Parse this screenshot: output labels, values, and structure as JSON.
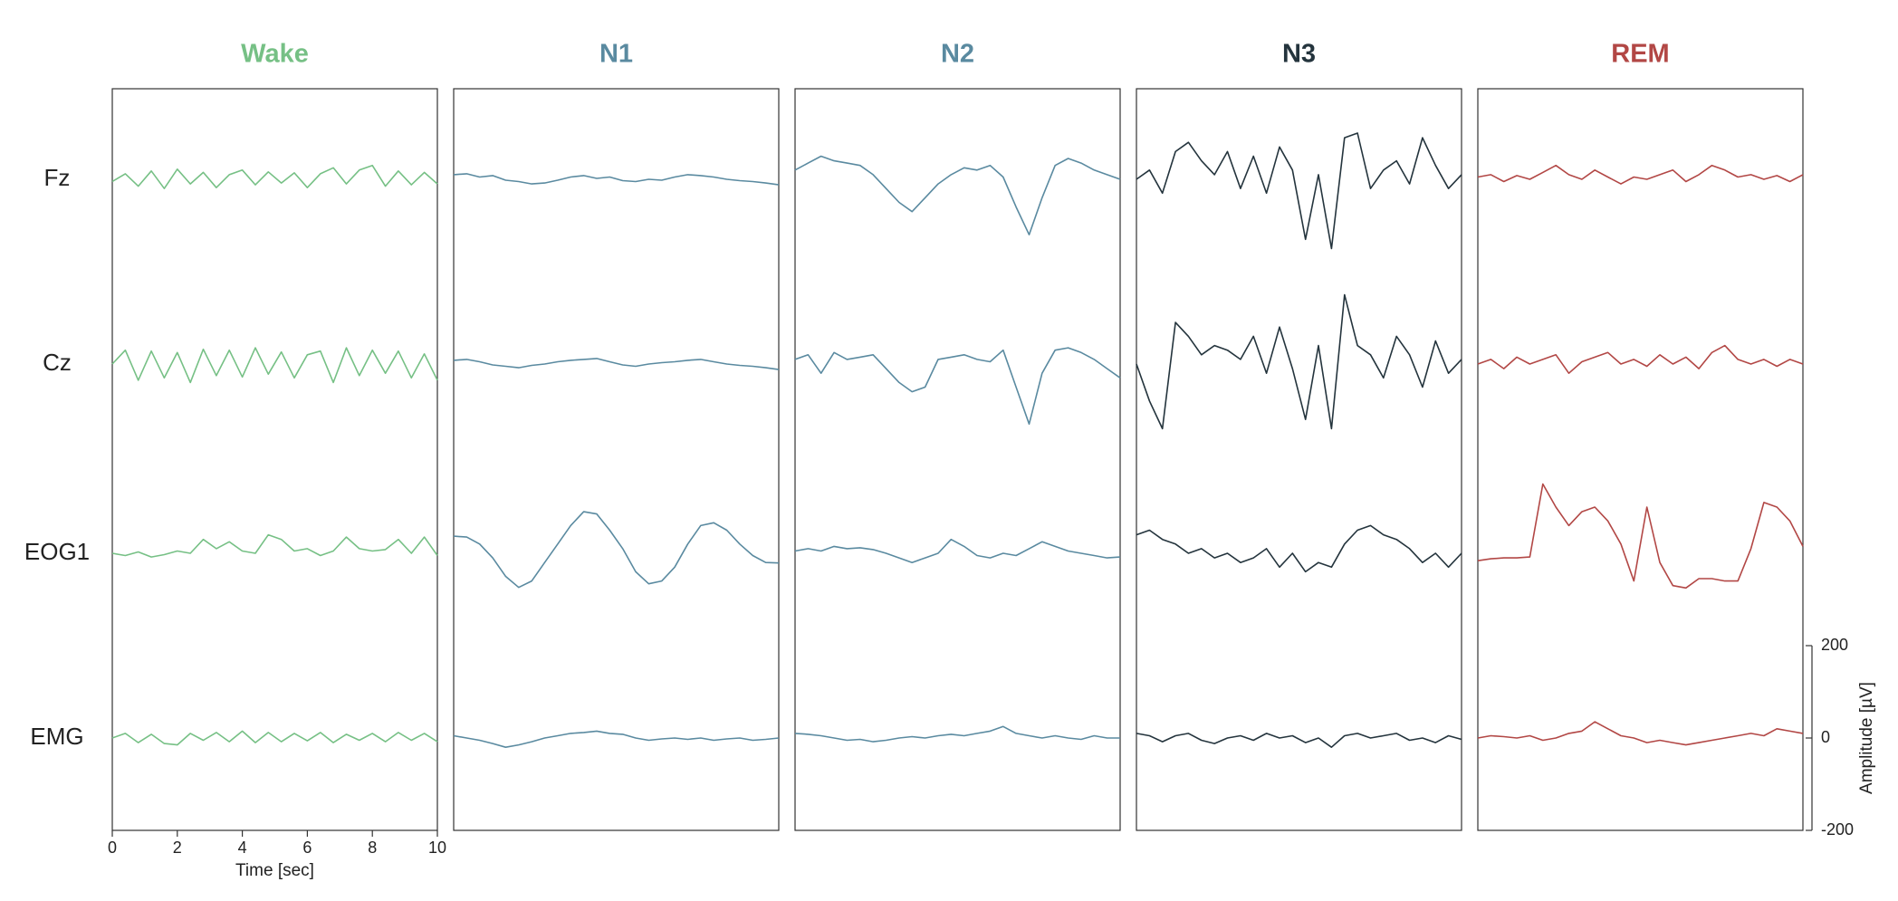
{
  "chart_data": {
    "type": "line",
    "channels": [
      "Fz",
      "Cz",
      "EOG1",
      "EMG"
    ],
    "x": [
      0,
      0.4,
      0.8,
      1.2,
      1.6,
      2.0,
      2.4,
      2.8,
      3.2,
      3.6,
      4.0,
      4.4,
      4.8,
      5.2,
      5.6,
      6.0,
      6.4,
      6.8,
      7.2,
      7.6,
      8.0,
      8.4,
      8.8,
      9.2,
      9.6,
      10
    ],
    "xlim": [
      0,
      10
    ],
    "xticks": [
      0,
      2,
      4,
      6,
      8,
      10
    ],
    "xlabel": "Time [sec]",
    "ylim": [
      -200,
      200
    ],
    "yticks": [
      -200,
      0,
      200
    ],
    "ylabel": "Amplitude [µV]",
    "panels": [
      {
        "title": "Wake",
        "color": "#76c085",
        "values": [
          [
            -5,
            12,
            -15,
            18,
            -20,
            22,
            -10,
            15,
            -18,
            10,
            20,
            -12,
            16,
            -8,
            14,
            -18,
            12,
            25,
            -10,
            20,
            30,
            -15,
            18,
            -12,
            15,
            -10
          ],
          [
            0,
            30,
            -35,
            28,
            -30,
            25,
            -40,
            32,
            -25,
            30,
            -28,
            35,
            -22,
            26,
            -30,
            20,
            28,
            -40,
            35,
            -25,
            30,
            -20,
            28,
            -30,
            22,
            -35
          ],
          [
            0,
            -5,
            3,
            -8,
            -3,
            5,
            0,
            30,
            10,
            25,
            5,
            0,
            40,
            30,
            5,
            10,
            -5,
            5,
            35,
            10,
            5,
            8,
            30,
            0,
            35,
            -5
          ],
          [
            0,
            10,
            -10,
            8,
            -12,
            -15,
            10,
            -5,
            12,
            -8,
            15,
            -10,
            12,
            -8,
            10,
            -6,
            12,
            -10,
            8,
            -5,
            10,
            -8,
            12,
            -5,
            10,
            -8
          ]
        ]
      },
      {
        "title": "N1",
        "color": "#5a8aa0",
        "values": [
          [
            10,
            12,
            5,
            8,
            -2,
            -5,
            -10,
            -8,
            -2,
            5,
            8,
            2,
            5,
            -3,
            -5,
            0,
            -2,
            5,
            10,
            8,
            5,
            0,
            -3,
            -5,
            -8,
            -12
          ],
          [
            8,
            10,
            5,
            -2,
            -5,
            -8,
            -3,
            0,
            5,
            8,
            10,
            12,
            5,
            -2,
            -5,
            0,
            3,
            5,
            8,
            10,
            5,
            0,
            -3,
            -5,
            -8,
            -12
          ],
          [
            37,
            35,
            20,
            -10,
            -50,
            -74,
            -60,
            -20,
            20,
            60,
            90,
            85,
            50,
            10,
            -40,
            -66,
            -60,
            -30,
            20,
            60,
            66,
            50,
            20,
            -5,
            -20,
            -21
          ],
          [
            5,
            0,
            -5,
            -12,
            -20,
            -15,
            -8,
            0,
            5,
            10,
            12,
            15,
            10,
            8,
            0,
            -5,
            -2,
            0,
            -3,
            0,
            -5,
            -2,
            0,
            -5,
            -3,
            0
          ]
        ]
      },
      {
        "title": "N2",
        "color": "#5a8aa0",
        "values": [
          [
            20,
            35,
            50,
            40,
            35,
            30,
            10,
            -20,
            -50,
            -70,
            -40,
            -10,
            10,
            25,
            20,
            30,
            5,
            -60,
            -120,
            -40,
            30,
            45,
            35,
            20,
            10,
            0
          ],
          [
            10,
            20,
            -20,
            25,
            10,
            15,
            20,
            -10,
            -40,
            -60,
            -50,
            10,
            15,
            20,
            10,
            5,
            30,
            -50,
            -130,
            -20,
            30,
            35,
            25,
            10,
            -10,
            -30
          ],
          [
            5,
            10,
            5,
            15,
            10,
            12,
            8,
            0,
            -10,
            -20,
            -10,
            0,
            30,
            15,
            -5,
            -10,
            0,
            -5,
            10,
            25,
            15,
            5,
            0,
            -5,
            -10,
            -8
          ],
          [
            10,
            8,
            5,
            0,
            -5,
            -3,
            -8,
            -5,
            0,
            3,
            0,
            5,
            8,
            5,
            10,
            15,
            25,
            10,
            5,
            0,
            5,
            0,
            -3,
            5,
            0,
            0
          ]
        ]
      },
      {
        "title": "N3",
        "color": "#24343d",
        "values": [
          [
            0,
            20,
            -30,
            60,
            80,
            40,
            10,
            60,
            -20,
            50,
            -30,
            70,
            20,
            -130,
            10,
            -150,
            90,
            100,
            -20,
            20,
            40,
            -10,
            90,
            30,
            -20,
            10
          ],
          [
            0,
            -80,
            -140,
            90,
            60,
            20,
            40,
            30,
            10,
            60,
            -20,
            80,
            -10,
            -120,
            40,
            -140,
            150,
            40,
            20,
            -30,
            60,
            20,
            -50,
            50,
            -20,
            10
          ],
          [
            40,
            50,
            30,
            20,
            0,
            10,
            -10,
            0,
            -20,
            -10,
            10,
            -30,
            0,
            -40,
            -20,
            -30,
            20,
            50,
            60,
            40,
            30,
            10,
            -20,
            0,
            -30,
            0
          ],
          [
            10,
            5,
            -8,
            5,
            10,
            -5,
            -12,
            0,
            5,
            -5,
            10,
            0,
            5,
            -10,
            0,
            -20,
            5,
            10,
            0,
            5,
            10,
            -5,
            0,
            -10,
            5,
            -3
          ]
        ]
      },
      {
        "title": "REM",
        "color": "#b24745",
        "values": [
          [
            5,
            10,
            -5,
            8,
            0,
            15,
            30,
            10,
            0,
            20,
            5,
            -10,
            5,
            0,
            10,
            20,
            -5,
            10,
            30,
            20,
            5,
            10,
            0,
            8,
            -5,
            10
          ],
          [
            0,
            10,
            -10,
            15,
            0,
            10,
            20,
            -20,
            5,
            15,
            25,
            0,
            10,
            -5,
            20,
            0,
            15,
            -10,
            25,
            40,
            10,
            0,
            10,
            -5,
            10,
            0
          ],
          [
            -16,
            -12,
            -10,
            -10,
            -8,
            150,
            100,
            60,
            90,
            100,
            70,
            20,
            -60,
            100,
            -20,
            -70,
            -75,
            -55,
            -55,
            -60,
            -60,
            10,
            110,
            100,
            70,
            15
          ],
          [
            0,
            5,
            3,
            0,
            5,
            -5,
            0,
            10,
            15,
            35,
            20,
            5,
            0,
            -10,
            -5,
            -10,
            -15,
            -10,
            -5,
            0,
            5,
            10,
            5,
            20,
            15,
            10
          ]
        ]
      }
    ]
  }
}
